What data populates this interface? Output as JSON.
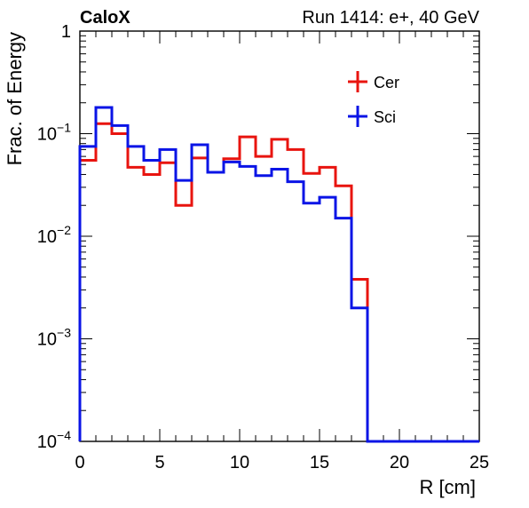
{
  "chart_data": {
    "type": "line",
    "title_left": "CaloX",
    "title_right": "Run 1414: e+, 40 GeV",
    "xlabel": "R [cm]",
    "ylabel": "Frac. of Energy",
    "xlim": [
      0,
      25
    ],
    "ylim": [
      0.0001,
      1
    ],
    "yscale": "log",
    "x_ticks": [
      {
        "value": 0,
        "label": "0"
      },
      {
        "value": 5,
        "label": "5"
      },
      {
        "value": 10,
        "label": "10"
      },
      {
        "value": 15,
        "label": "15"
      },
      {
        "value": 20,
        "label": "20"
      },
      {
        "value": 25,
        "label": "25"
      }
    ],
    "y_ticks": [
      {
        "value": 1,
        "base": "1",
        "exp": ""
      },
      {
        "value": 0.1,
        "base": "10",
        "exp": "−1"
      },
      {
        "value": 0.01,
        "base": "10",
        "exp": "−2"
      },
      {
        "value": 0.001,
        "base": "10",
        "exp": "−3"
      },
      {
        "value": 0.0001,
        "base": "10",
        "exp": "−4"
      }
    ],
    "bin_edges": [
      0,
      1,
      2,
      3,
      4,
      5,
      6,
      7,
      8,
      9,
      10,
      11,
      12,
      13,
      14,
      15,
      16,
      17,
      18,
      19,
      20,
      21,
      22,
      23,
      24,
      25
    ],
    "legend_position": "top-right",
    "series": [
      {
        "name": "Cer",
        "color": "#e8140f",
        "values": [
          0.055,
          0.125,
          0.1,
          0.047,
          0.04,
          0.052,
          0.02,
          0.058,
          0.042,
          0.057,
          0.093,
          0.06,
          0.088,
          0.07,
          0.041,
          0.047,
          0.031,
          0.0038,
          0,
          0,
          0,
          0,
          0,
          0,
          0
        ]
      },
      {
        "name": "Sci",
        "color": "#0a14e6",
        "values": [
          0.075,
          0.18,
          0.12,
          0.075,
          0.055,
          0.07,
          0.035,
          0.078,
          0.042,
          0.053,
          0.048,
          0.039,
          0.045,
          0.034,
          0.021,
          0.024,
          0.015,
          0.002,
          0,
          0,
          0,
          0,
          0,
          0,
          0
        ]
      }
    ]
  }
}
